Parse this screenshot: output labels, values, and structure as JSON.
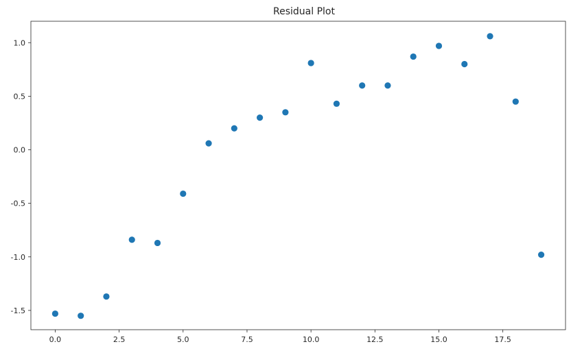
{
  "chart_data": {
    "type": "scatter",
    "title": "Residual Plot",
    "xlabel": "",
    "ylabel": "",
    "xlim": [
      -0.95,
      19.95
    ],
    "ylim": [
      -1.68,
      1.2
    ],
    "x_ticks": [
      0.0,
      2.5,
      5.0,
      7.5,
      10.0,
      12.5,
      15.0,
      17.5
    ],
    "x_tick_labels": [
      "0.0",
      "2.5",
      "5.0",
      "7.5",
      "10.0",
      "12.5",
      "15.0",
      "17.5"
    ],
    "y_ticks": [
      -1.5,
      -1.0,
      -0.5,
      0.0,
      0.5,
      1.0
    ],
    "y_tick_labels": [
      "-1.5",
      "-1.0",
      "-0.5",
      "0.0",
      "0.5",
      "1.0"
    ],
    "grid": false,
    "marker_color": "#1f77b4",
    "series": [
      {
        "x": [
          0,
          1,
          2,
          3,
          4,
          5,
          6,
          7,
          8,
          9,
          10,
          11,
          12,
          13,
          14,
          15,
          16,
          17,
          18,
          19
        ],
        "y": [
          -1.53,
          -1.55,
          -1.37,
          -0.84,
          -0.87,
          -0.41,
          0.06,
          0.2,
          0.3,
          0.35,
          0.81,
          0.43,
          0.6,
          0.6,
          0.87,
          0.97,
          0.8,
          1.06,
          0.45,
          -0.98
        ]
      }
    ]
  }
}
